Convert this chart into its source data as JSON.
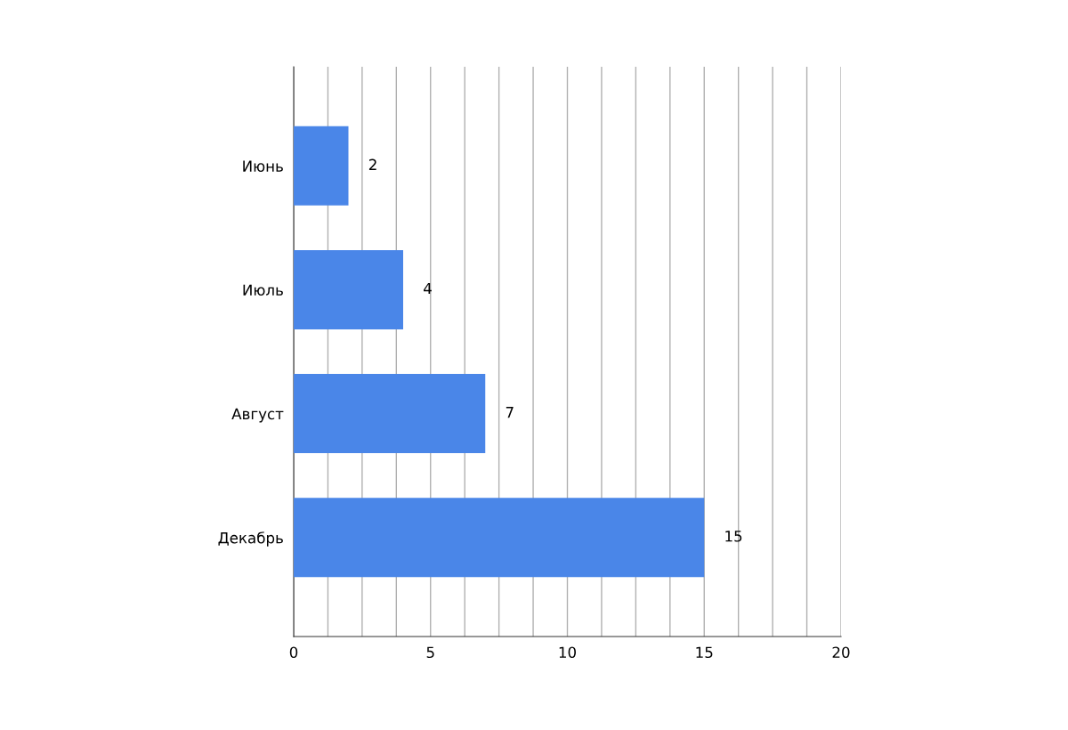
{
  "chart_data": {
    "type": "bar",
    "orientation": "horizontal",
    "categories": [
      "Июнь",
      "Июль",
      "Август",
      "Декабрь"
    ],
    "values": [
      2,
      4,
      7,
      15
    ],
    "color": "#4a86e8",
    "data_labels": true,
    "xlim": [
      0,
      20
    ],
    "xticks": [
      0,
      {
        "value": 1.25,
        "label": null
      },
      {
        "value": 2.5,
        "label": null
      },
      {
        "value": 3.75,
        "label": null
      },
      5,
      {
        "value": 6.25,
        "label": null
      },
      {
        "value": 7.5,
        "label": null
      },
      {
        "value": 8.75,
        "label": null
      },
      10,
      {
        "value": 11.25,
        "label": null
      },
      {
        "value": 12.5,
        "label": null
      },
      {
        "value": 13.75,
        "label": null
      },
      15,
      {
        "value": 16.25,
        "label": null
      },
      {
        "value": 17.5,
        "label": null
      },
      {
        "value": 18.75,
        "label": null
      },
      20
    ],
    "grid": "x"
  }
}
